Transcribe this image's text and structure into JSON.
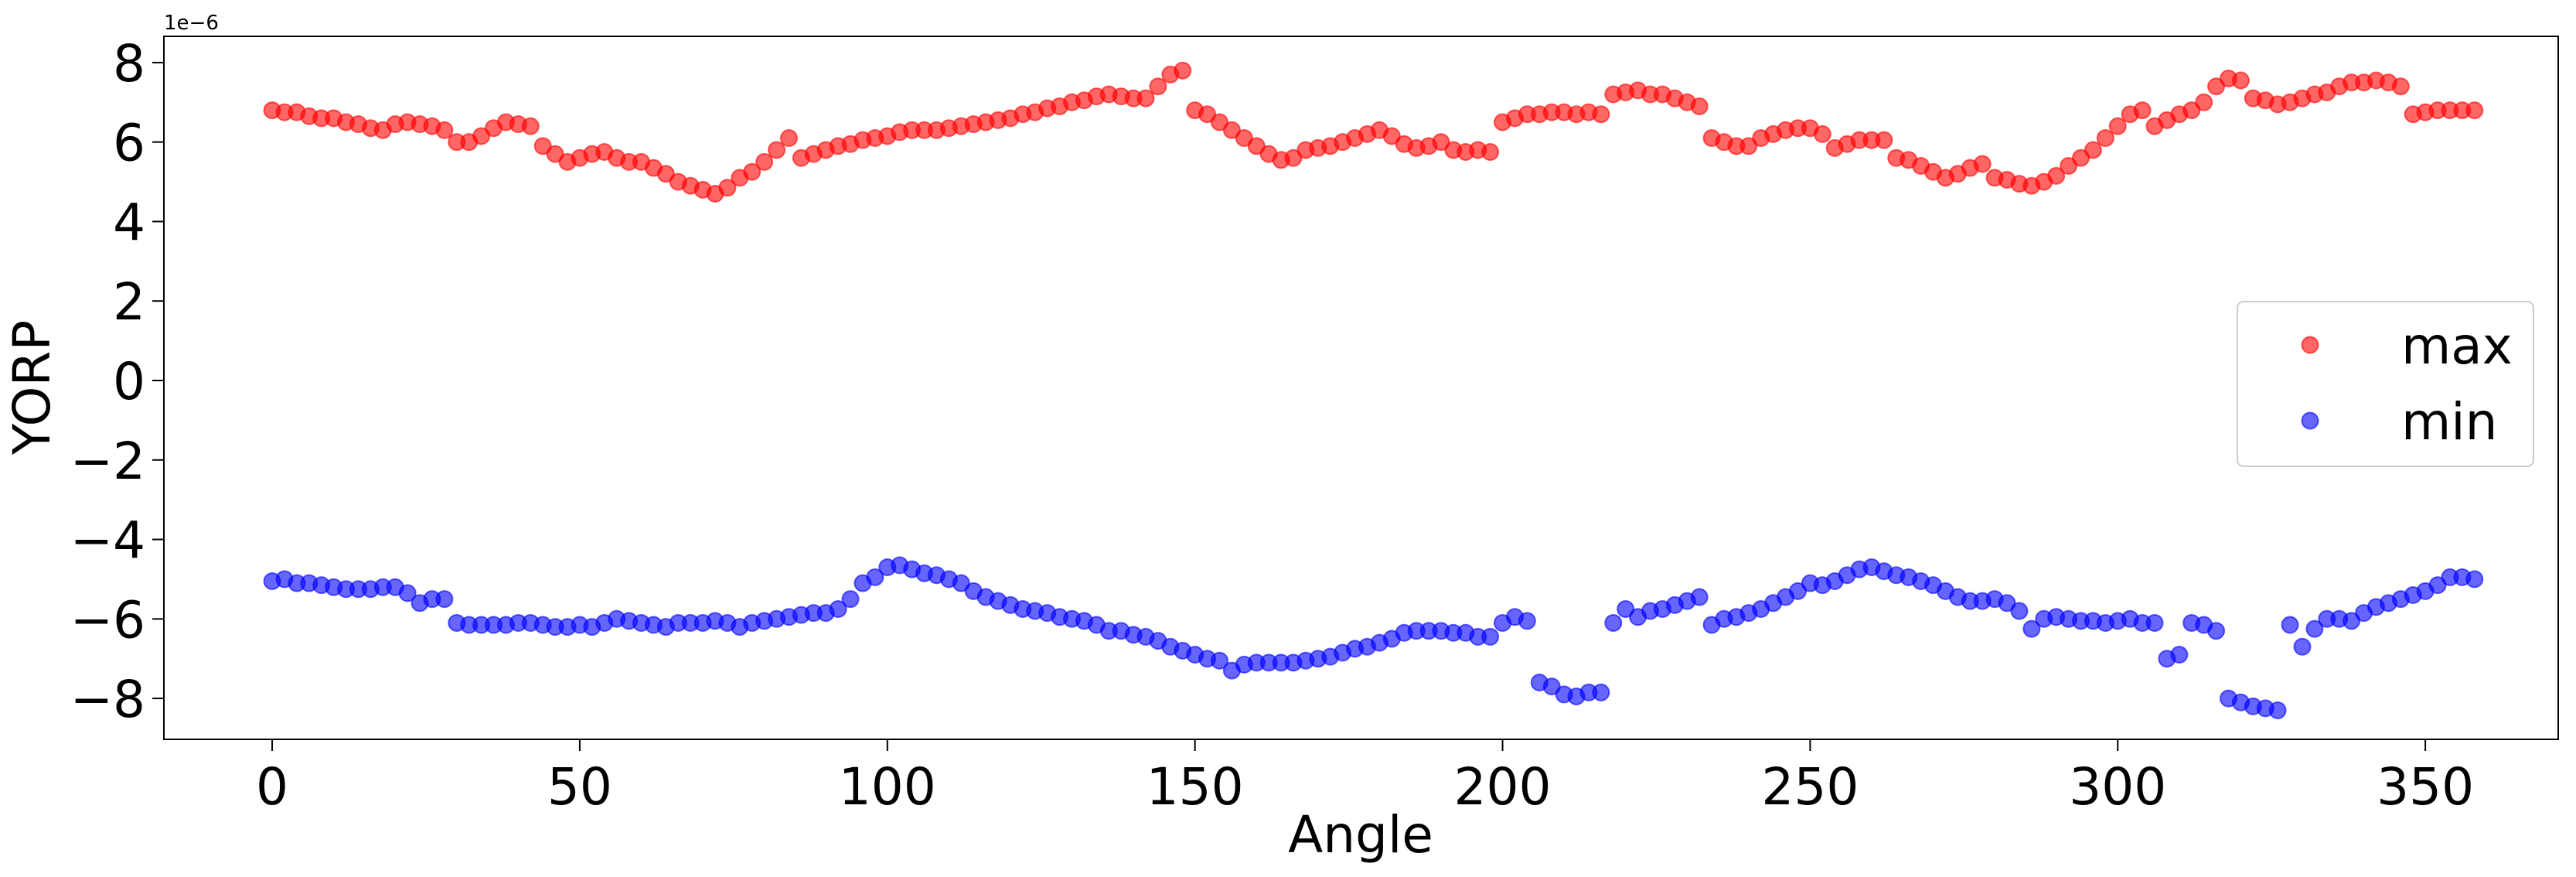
{
  "chart_data": {
    "type": "scatter",
    "xlabel": "Angle",
    "ylabel": "YORP",
    "offset_text": "1e−6",
    "x": [
      0,
      2,
      4,
      6,
      8,
      10,
      12,
      14,
      16,
      18,
      20,
      22,
      24,
      26,
      28,
      30,
      32,
      34,
      36,
      38,
      40,
      42,
      44,
      46,
      48,
      50,
      52,
      54,
      56,
      58,
      60,
      62,
      64,
      66,
      68,
      70,
      72,
      74,
      76,
      78,
      80,
      82,
      84,
      86,
      88,
      90,
      92,
      94,
      96,
      98,
      100,
      102,
      104,
      106,
      108,
      110,
      112,
      114,
      116,
      118,
      120,
      122,
      124,
      126,
      128,
      130,
      132,
      134,
      136,
      138,
      140,
      142,
      144,
      146,
      148,
      150,
      152,
      154,
      156,
      158,
      160,
      162,
      164,
      166,
      168,
      170,
      172,
      174,
      176,
      178,
      180,
      182,
      184,
      186,
      188,
      190,
      192,
      194,
      196,
      198,
      200,
      202,
      204,
      206,
      208,
      210,
      212,
      214,
      216,
      218,
      220,
      222,
      224,
      226,
      228,
      230,
      232,
      234,
      236,
      238,
      240,
      242,
      244,
      246,
      248,
      250,
      252,
      254,
      256,
      258,
      260,
      262,
      264,
      266,
      268,
      270,
      272,
      274,
      276,
      278,
      280,
      282,
      284,
      286,
      288,
      290,
      292,
      294,
      296,
      298,
      300,
      302,
      304,
      306,
      308,
      310,
      312,
      314,
      316,
      318,
      320,
      322,
      324,
      326,
      328,
      330,
      332,
      334,
      336,
      338,
      340,
      342,
      344,
      346,
      348,
      350,
      352,
      354,
      356,
      358
    ],
    "series": [
      {
        "name": "max",
        "color": "#ff0000",
        "values": [
          6.8,
          6.75,
          6.75,
          6.65,
          6.6,
          6.6,
          6.5,
          6.45,
          6.35,
          6.3,
          6.45,
          6.5,
          6.45,
          6.4,
          6.3,
          6.0,
          6.0,
          6.15,
          6.35,
          6.5,
          6.45,
          6.4,
          5.9,
          5.7,
          5.5,
          5.6,
          5.7,
          5.75,
          5.6,
          5.5,
          5.5,
          5.35,
          5.2,
          5.0,
          4.9,
          4.8,
          4.7,
          4.85,
          5.1,
          5.25,
          5.5,
          5.8,
          6.1,
          5.6,
          5.7,
          5.8,
          5.9,
          5.95,
          6.05,
          6.1,
          6.15,
          6.25,
          6.3,
          6.3,
          6.3,
          6.35,
          6.4,
          6.45,
          6.5,
          6.55,
          6.6,
          6.7,
          6.75,
          6.85,
          6.9,
          7.0,
          7.05,
          7.15,
          7.2,
          7.15,
          7.1,
          7.1,
          7.4,
          7.7,
          7.8,
          6.8,
          6.7,
          6.5,
          6.3,
          6.1,
          5.9,
          5.7,
          5.55,
          5.6,
          5.8,
          5.85,
          5.9,
          6.0,
          6.1,
          6.2,
          6.3,
          6.15,
          5.95,
          5.85,
          5.9,
          6.0,
          5.8,
          5.75,
          5.8,
          5.75,
          6.5,
          6.6,
          6.7,
          6.7,
          6.75,
          6.75,
          6.7,
          6.75,
          6.7,
          7.2,
          7.25,
          7.3,
          7.2,
          7.2,
          7.1,
          7.0,
          6.9,
          6.1,
          6.0,
          5.9,
          5.9,
          6.1,
          6.2,
          6.3,
          6.35,
          6.35,
          6.2,
          5.85,
          5.95,
          6.05,
          6.05,
          6.05,
          5.6,
          5.55,
          5.4,
          5.25,
          5.1,
          5.2,
          5.35,
          5.45,
          5.1,
          5.05,
          4.95,
          4.9,
          5.0,
          5.15,
          5.4,
          5.6,
          5.8,
          6.1,
          6.4,
          6.7,
          6.8,
          6.4,
          6.55,
          6.7,
          6.8,
          7.0,
          7.4,
          7.6,
          7.55,
          7.1,
          7.05,
          6.95,
          7.0,
          7.1,
          7.2,
          7.25,
          7.4,
          7.5,
          7.5,
          7.55,
          7.5,
          7.4,
          6.7,
          6.75,
          6.8,
          6.8,
          6.8,
          6.8
        ]
      },
      {
        "name": "min",
        "color": "#0000ff",
        "values": [
          -5.05,
          -5.0,
          -5.1,
          -5.1,
          -5.15,
          -5.2,
          -5.25,
          -5.25,
          -5.25,
          -5.2,
          -5.2,
          -5.35,
          -5.6,
          -5.5,
          -5.5,
          -6.1,
          -6.15,
          -6.15,
          -6.15,
          -6.15,
          -6.1,
          -6.1,
          -6.15,
          -6.2,
          -6.2,
          -6.15,
          -6.2,
          -6.1,
          -6.0,
          -6.05,
          -6.1,
          -6.15,
          -6.2,
          -6.1,
          -6.1,
          -6.1,
          -6.05,
          -6.1,
          -6.2,
          -6.1,
          -6.05,
          -6.0,
          -5.95,
          -5.9,
          -5.85,
          -5.85,
          -5.75,
          -5.5,
          -5.1,
          -4.95,
          -4.7,
          -4.65,
          -4.75,
          -4.85,
          -4.9,
          -5.0,
          -5.1,
          -5.3,
          -5.45,
          -5.55,
          -5.65,
          -5.75,
          -5.8,
          -5.85,
          -5.95,
          -6.0,
          -6.05,
          -6.15,
          -6.3,
          -6.3,
          -6.4,
          -6.45,
          -6.55,
          -6.7,
          -6.8,
          -6.9,
          -7.0,
          -7.05,
          -7.3,
          -7.15,
          -7.1,
          -7.1,
          -7.1,
          -7.1,
          -7.05,
          -7.0,
          -6.95,
          -6.85,
          -6.75,
          -6.7,
          -6.6,
          -6.5,
          -6.35,
          -6.3,
          -6.3,
          -6.3,
          -6.35,
          -6.35,
          -6.45,
          -6.45,
          -6.1,
          -5.95,
          -6.05,
          -7.6,
          -7.7,
          -7.9,
          -7.95,
          -7.85,
          -7.85,
          -6.1,
          -5.75,
          -5.95,
          -5.8,
          -5.75,
          -5.65,
          -5.55,
          -5.45,
          -6.15,
          -6.0,
          -5.95,
          -5.85,
          -5.75,
          -5.6,
          -5.45,
          -5.3,
          -5.1,
          -5.15,
          -5.05,
          -4.9,
          -4.75,
          -4.7,
          -4.8,
          -4.9,
          -4.95,
          -5.05,
          -5.15,
          -5.3,
          -5.45,
          -5.55,
          -5.55,
          -5.5,
          -5.6,
          -5.8,
          -6.25,
          -6.0,
          -5.95,
          -6.0,
          -6.05,
          -6.05,
          -6.1,
          -6.05,
          -6.0,
          -6.1,
          -6.1,
          -7.0,
          -6.9,
          -6.1,
          -6.15,
          -6.3,
          -8.0,
          -8.1,
          -8.2,
          -8.25,
          -8.3,
          -6.15,
          -6.7,
          -6.25,
          -6.0,
          -6.0,
          -6.05,
          -5.85,
          -5.7,
          -5.6,
          -5.5,
          -5.4,
          -5.3,
          -5.15,
          -4.95,
          -4.95,
          -5.0
        ]
      }
    ],
    "xlim": [
      -17.6,
      371.6
    ],
    "ylim": [
      -9.03,
      8.66
    ],
    "xticks": [
      0,
      50,
      100,
      150,
      200,
      250,
      300,
      350
    ],
    "yticks": [
      {
        "value": -8,
        "label": "−8"
      },
      {
        "value": -6,
        "label": "−6"
      },
      {
        "value": -4,
        "label": "−4"
      },
      {
        "value": -2,
        "label": "−2"
      },
      0,
      2,
      4,
      6,
      8
    ],
    "marker_alpha": 0.6,
    "grid": false,
    "legend": "center right"
  }
}
